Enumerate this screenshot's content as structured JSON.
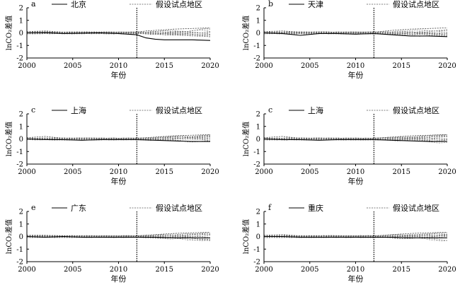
{
  "figure": {
    "xlabel": "年份",
    "ylabel": "lnCO₂差值",
    "pseudo_label": "假设试点地区"
  },
  "chart_data": [
    {
      "type": "line",
      "panel": "a",
      "title": "北京",
      "xlabel": "年份",
      "ylabel": "lnCO₂差值",
      "xlim": [
        2000,
        2020
      ],
      "ylim": [
        -2,
        2
      ],
      "xticks": [
        2000,
        2005,
        2010,
        2015,
        2020
      ],
      "yticks": [
        -2,
        -1,
        0,
        1,
        2
      ],
      "vline_x": 2012,
      "x": [
        2000,
        2002,
        2004,
        2006,
        2008,
        2010,
        2011,
        2012,
        2013,
        2014,
        2015,
        2016,
        2018,
        2020
      ],
      "series": [
        {
          "name": "北京",
          "style": "solid",
          "values": [
            0.0,
            0.02,
            -0.05,
            -0.02,
            0.0,
            -0.05,
            -0.1,
            -0.15,
            -0.4,
            -0.5,
            -0.55,
            -0.55,
            -0.55,
            -0.6
          ]
        },
        {
          "name": "假设试点地区",
          "style": "dashed",
          "values": [
            0.1,
            0.15,
            0.05,
            0.08,
            0.05,
            0.05,
            0.05,
            0.05,
            0.15,
            0.2,
            0.25,
            0.3,
            0.35,
            0.4
          ]
        }
      ]
    },
    {
      "type": "line",
      "panel": "b",
      "title": "天津",
      "xlabel": "年份",
      "ylabel": "lnCO₂差值",
      "xlim": [
        2000,
        2020
      ],
      "ylim": [
        -2,
        2
      ],
      "xticks": [
        2000,
        2005,
        2010,
        2015,
        2020
      ],
      "yticks": [
        -2,
        -1,
        0,
        1,
        2
      ],
      "vline_x": 2012,
      "x": [
        2000,
        2002,
        2004,
        2006,
        2008,
        2010,
        2012,
        2014,
        2016,
        2018,
        2020
      ],
      "series": [
        {
          "name": "天津",
          "style": "solid",
          "values": [
            0.0,
            -0.05,
            -0.2,
            -0.05,
            -0.05,
            -0.1,
            -0.05,
            -0.15,
            -0.25,
            -0.25,
            -0.3
          ]
        },
        {
          "name": "假设试点地区",
          "style": "dashed",
          "values": [
            0.1,
            0.15,
            0.05,
            0.08,
            0.05,
            0.05,
            0.05,
            0.2,
            0.3,
            0.35,
            0.4
          ]
        }
      ]
    },
    {
      "type": "line",
      "panel": "c",
      "title": "上海",
      "xlabel": "年份",
      "ylabel": "lnCO₂差值",
      "xlim": [
        2000,
        2020
      ],
      "ylim": [
        -2,
        2
      ],
      "xticks": [
        2000,
        2005,
        2010,
        2015,
        2020
      ],
      "yticks": [
        -2,
        -1,
        0,
        1,
        2
      ],
      "vline_x": 2012,
      "x": [
        2000,
        2002,
        2004,
        2006,
        2008,
        2010,
        2012,
        2014,
        2016,
        2018,
        2020
      ],
      "series": [
        {
          "name": "上海",
          "style": "solid",
          "values": [
            0.0,
            -0.05,
            -0.05,
            -0.1,
            -0.05,
            -0.05,
            -0.05,
            -0.1,
            -0.15,
            -0.2,
            -0.2
          ]
        },
        {
          "name": "假设试点地区",
          "style": "dashed",
          "values": [
            0.1,
            0.2,
            0.05,
            0.08,
            0.05,
            0.05,
            0.05,
            0.15,
            0.25,
            0.3,
            0.35
          ]
        }
      ]
    },
    {
      "type": "line",
      "panel": "c",
      "title": "上海",
      "xlabel": "年份",
      "ylabel": "lnCO₂差值",
      "xlim": [
        2000,
        2020
      ],
      "ylim": [
        -2,
        2
      ],
      "xticks": [
        2000,
        2005,
        2010,
        2015,
        2020
      ],
      "yticks": [
        -2,
        -1,
        0,
        1,
        2
      ],
      "vline_x": 2012,
      "x": [
        2000,
        2002,
        2004,
        2006,
        2008,
        2010,
        2012,
        2014,
        2016,
        2018,
        2020
      ],
      "series": [
        {
          "name": "上海",
          "style": "solid",
          "values": [
            0.0,
            -0.05,
            -0.05,
            -0.1,
            -0.05,
            -0.05,
            -0.05,
            -0.1,
            -0.15,
            -0.2,
            -0.2
          ]
        },
        {
          "name": "假设试点地区",
          "style": "dashed",
          "values": [
            0.1,
            0.2,
            0.05,
            0.08,
            0.05,
            0.05,
            0.05,
            0.15,
            0.25,
            0.3,
            0.35
          ]
        }
      ]
    },
    {
      "type": "line",
      "panel": "e",
      "title": "广东",
      "xlabel": "年份",
      "ylabel": "lnCO₂差值",
      "xlim": [
        2000,
        2020
      ],
      "ylim": [
        -2,
        2
      ],
      "xticks": [
        2000,
        2005,
        2010,
        2015,
        2020
      ],
      "yticks": [
        -2,
        -1,
        0,
        1,
        2
      ],
      "vline_x": 2012,
      "x": [
        2000,
        2002,
        2004,
        2006,
        2008,
        2010,
        2012,
        2014,
        2016,
        2018,
        2020
      ],
      "series": [
        {
          "name": "广东",
          "style": "solid",
          "values": [
            0.0,
            -0.05,
            0.0,
            -0.05,
            -0.05,
            -0.05,
            -0.05,
            -0.05,
            -0.1,
            -0.1,
            -0.1
          ]
        },
        {
          "name": "假设试点地区",
          "style": "dashed",
          "values": [
            0.1,
            0.1,
            0.05,
            0.05,
            0.05,
            0.05,
            0.05,
            0.15,
            0.25,
            0.3,
            0.35
          ]
        }
      ]
    },
    {
      "type": "line",
      "panel": "f",
      "title": "重庆",
      "xlabel": "年份",
      "ylabel": "lnCO₂差值",
      "xlim": [
        2000,
        2020
      ],
      "ylim": [
        -2,
        2
      ],
      "xticks": [
        2000,
        2005,
        2010,
        2015,
        2020
      ],
      "yticks": [
        -2,
        -1,
        0,
        1,
        2
      ],
      "vline_x": 2012,
      "x": [
        2000,
        2002,
        2004,
        2006,
        2008,
        2010,
        2012,
        2014,
        2016,
        2018,
        2020
      ],
      "series": [
        {
          "name": "重庆",
          "style": "solid",
          "values": [
            0.0,
            0.0,
            -0.05,
            -0.05,
            -0.05,
            -0.05,
            -0.05,
            -0.05,
            -0.1,
            -0.1,
            -0.1
          ]
        },
        {
          "name": "假设试点地区",
          "style": "dashed",
          "values": [
            0.1,
            0.15,
            0.05,
            0.05,
            0.05,
            0.05,
            0.05,
            0.15,
            0.25,
            0.3,
            0.35
          ]
        }
      ]
    }
  ]
}
